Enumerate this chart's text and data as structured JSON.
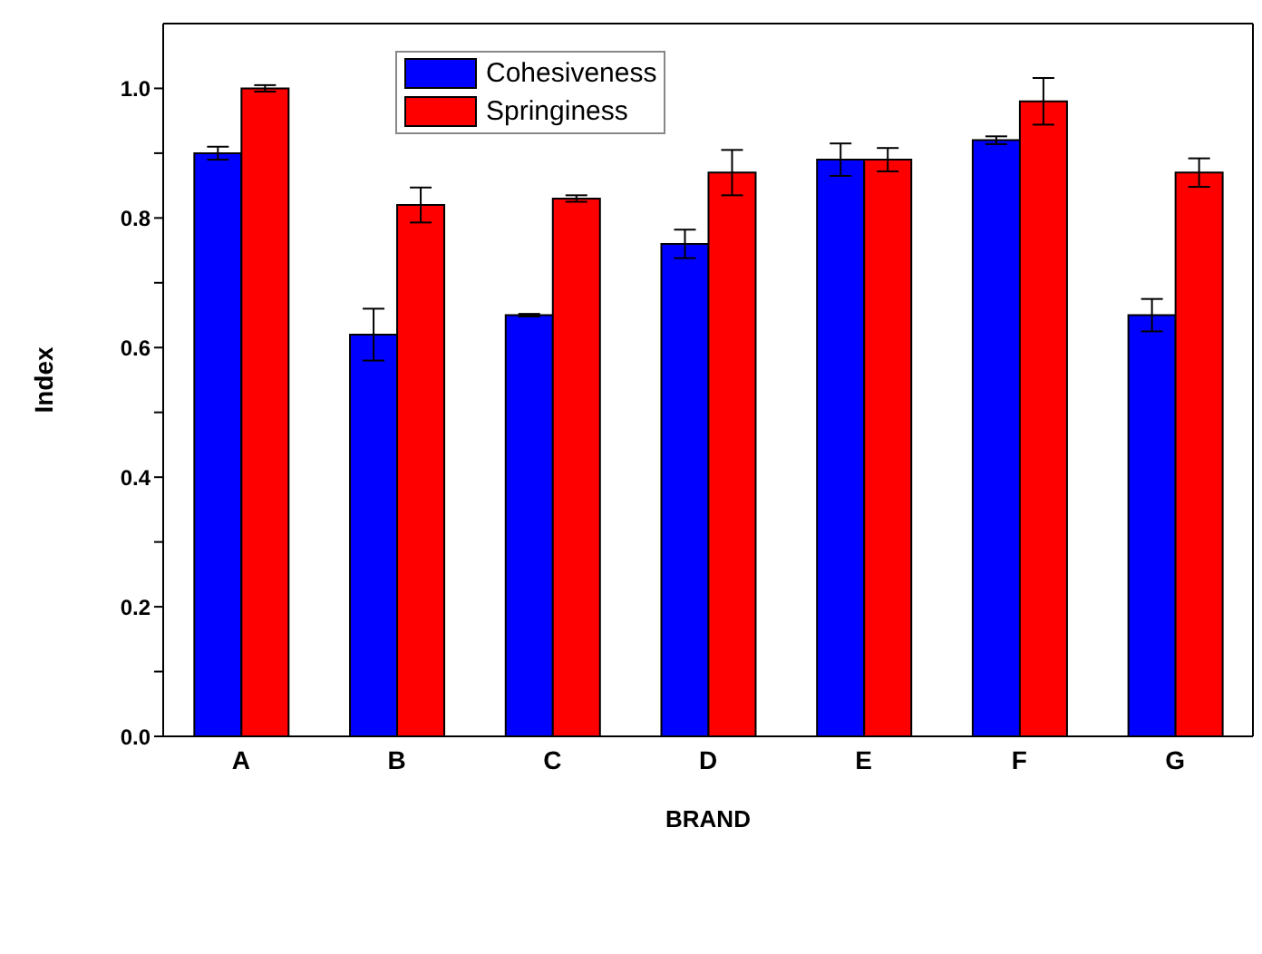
{
  "chart_data": {
    "type": "bar",
    "xlabel": "BRAND",
    "ylabel": "Index",
    "categories": [
      "A",
      "B",
      "C",
      "D",
      "E",
      "F",
      "G"
    ],
    "series": [
      {
        "name": "Cohesiveness",
        "color": "#0000ff",
        "values": [
          0.9,
          0.62,
          0.65,
          0.76,
          0.89,
          0.92,
          0.65
        ],
        "errors": [
          0.01,
          0.04,
          0.002,
          0.022,
          0.025,
          0.006,
          0.025
        ]
      },
      {
        "name": "Springiness",
        "color": "#ff0000",
        "values": [
          1.0,
          0.82,
          0.83,
          0.87,
          0.89,
          0.98,
          0.87
        ],
        "errors": [
          0.005,
          0.027,
          0.005,
          0.035,
          0.018,
          0.036,
          0.022
        ]
      }
    ],
    "ylim": [
      0,
      1.1
    ],
    "yticks": [
      {
        "value": 0,
        "label": "0.0"
      },
      {
        "value": 0.1,
        "label": null
      },
      {
        "value": 0.2,
        "label": "0.2"
      },
      {
        "value": 0.3,
        "label": null
      },
      {
        "value": 0.4,
        "label": "0.4"
      },
      {
        "value": 0.5,
        "label": null
      },
      {
        "value": 0.6,
        "label": "0.6"
      },
      {
        "value": 0.7,
        "label": null
      },
      {
        "value": 0.8,
        "label": "0.8"
      },
      {
        "value": 0.9,
        "label": null
      },
      {
        "value": 1.0,
        "label": "1.0"
      }
    ],
    "legend": "top",
    "grid": false
  }
}
